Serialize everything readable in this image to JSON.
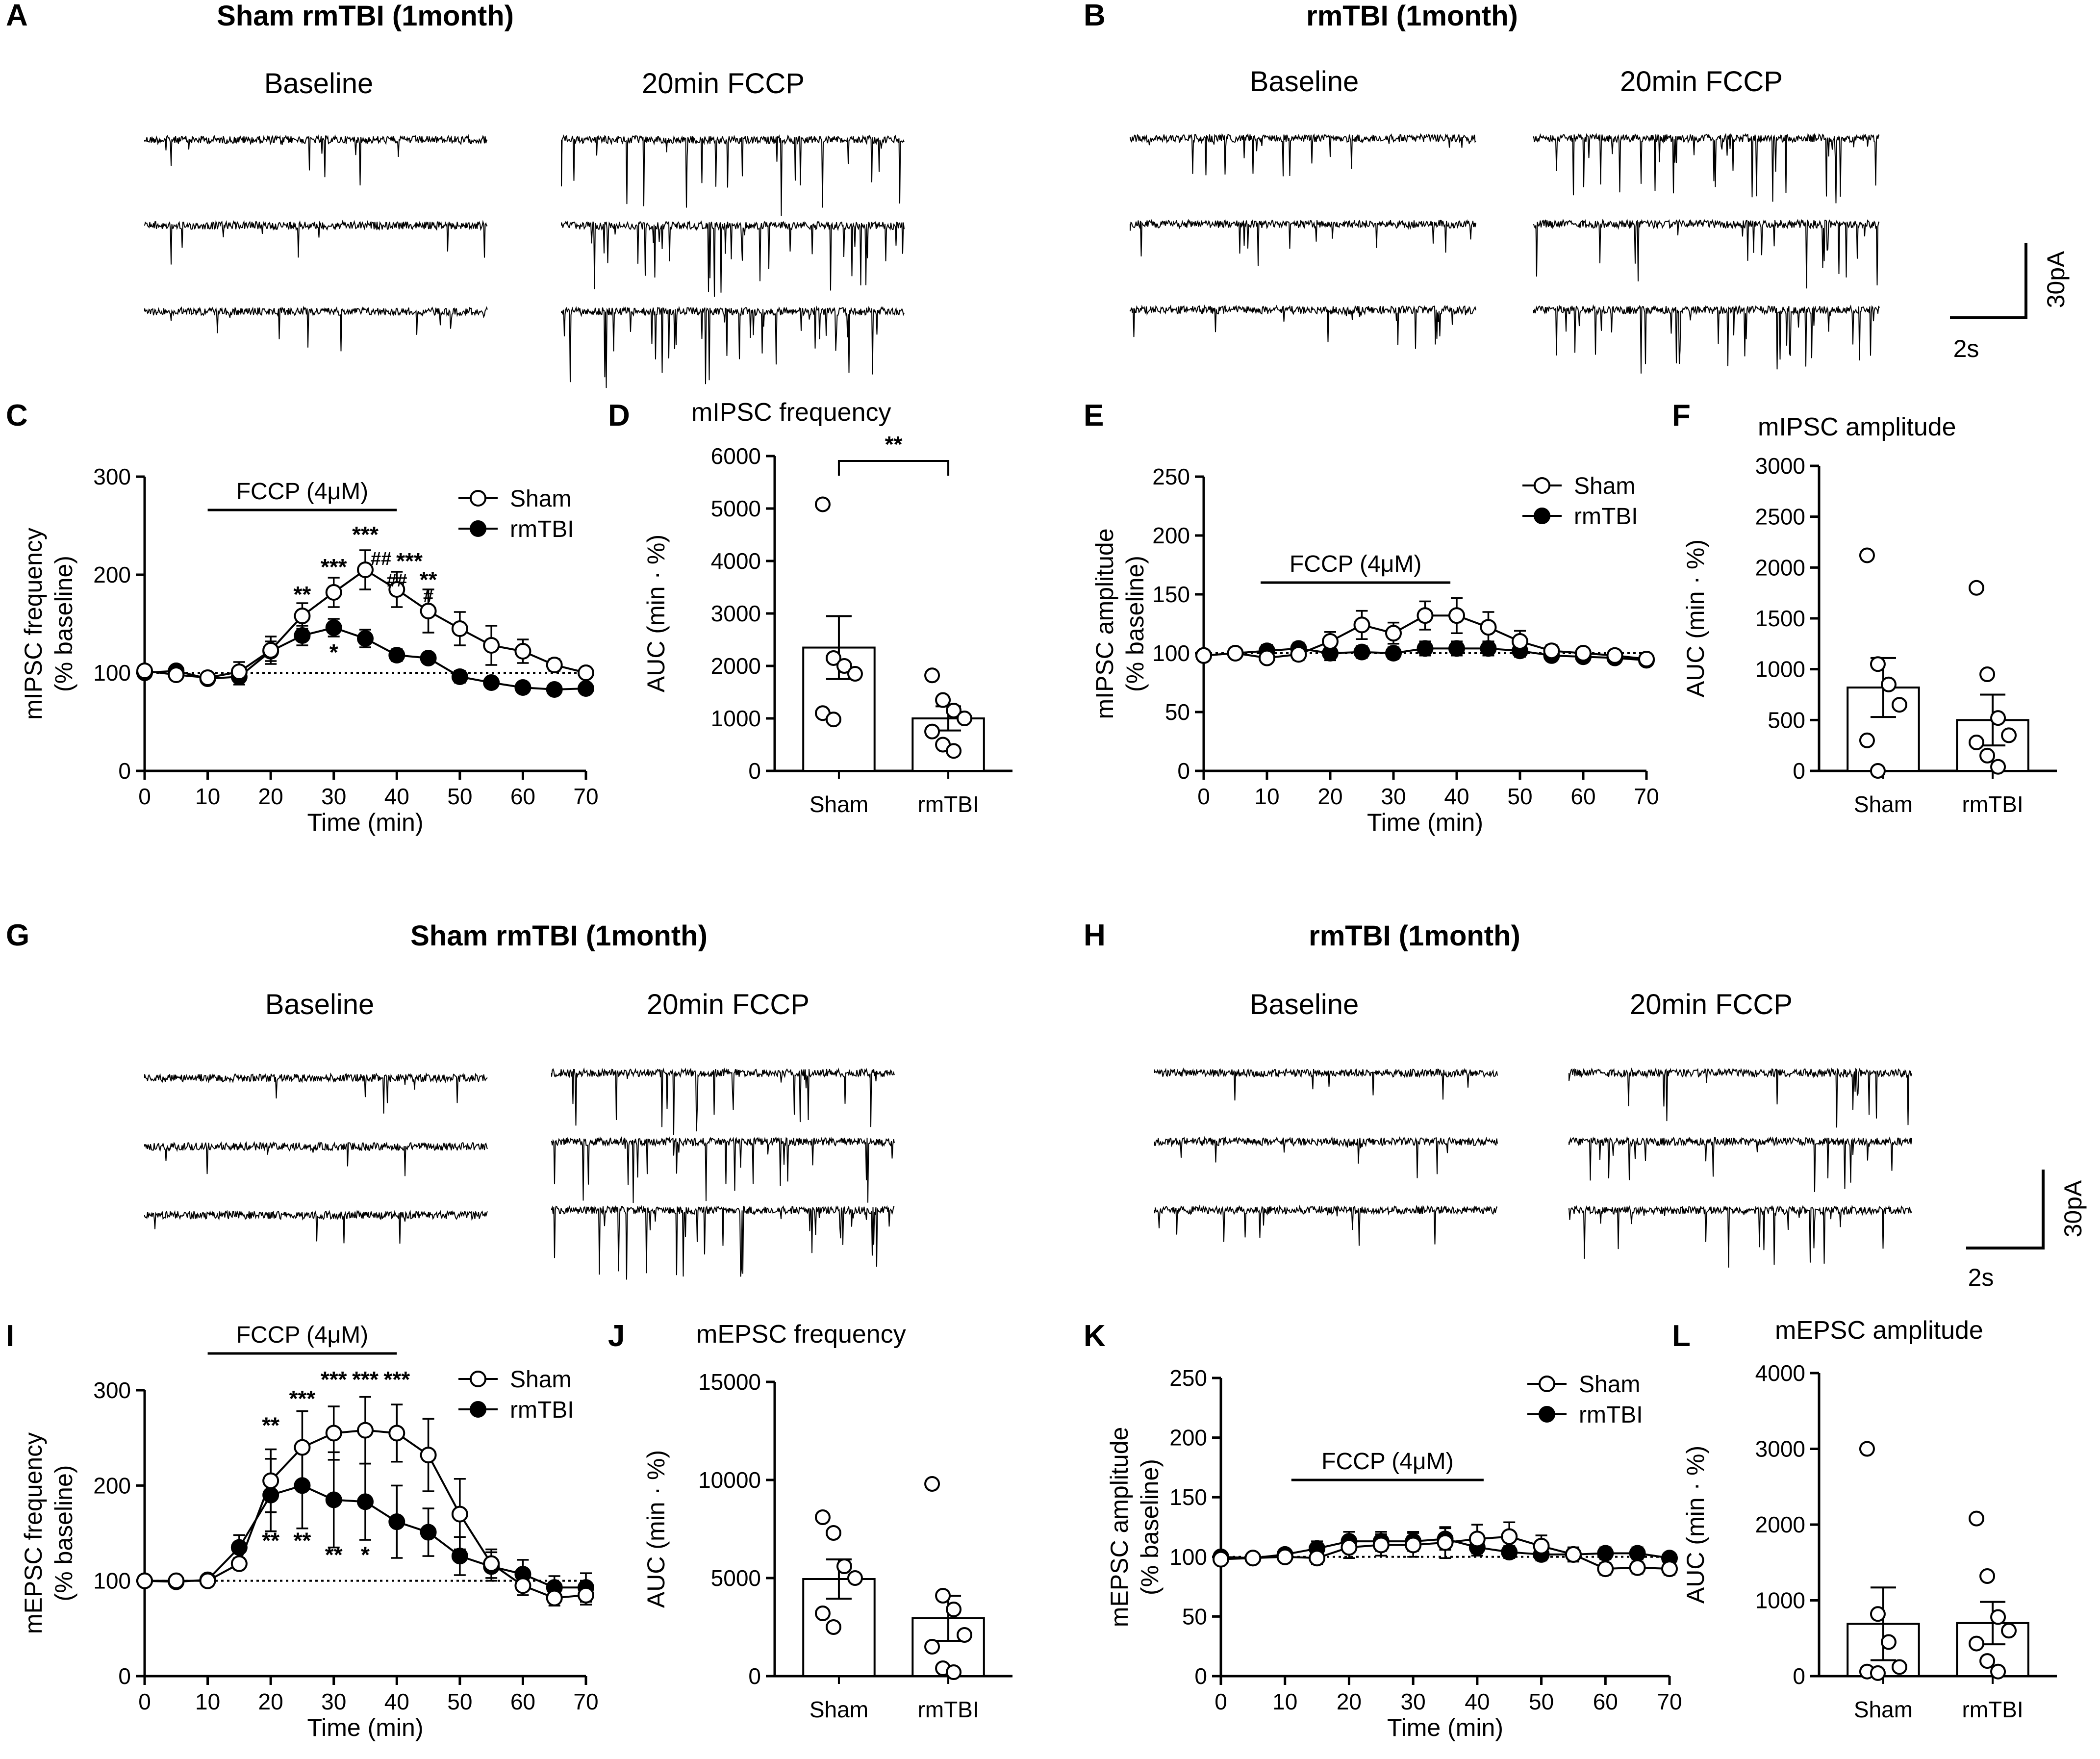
{
  "colors": {
    "ink": "#000000",
    "open_marker": "#ffffff",
    "background": "#ffffff"
  },
  "sections": [
    {
      "panel": "A",
      "title": "Sham rmTBI (1month)",
      "conditions": [
        "Baseline",
        "20min FCCP"
      ]
    },
    {
      "panel": "B",
      "title": "rmTBI (1month)",
      "conditions": [
        "Baseline",
        "20min FCCP"
      ]
    },
    {
      "panel": "G",
      "title": "Sham rmTBI (1month)",
      "conditions": [
        "Baseline",
        "20min FCCP"
      ]
    },
    {
      "panel": "H",
      "title": "rmTBI (1month)",
      "conditions": [
        "Baseline",
        "20min FCCP"
      ]
    }
  ],
  "scale_bars": [
    {
      "y_label": "30pA",
      "x_label": "2s"
    },
    {
      "y_label": "30pA",
      "x_label": "2s"
    }
  ],
  "chart_data": [
    {
      "panel": "C",
      "type": "line",
      "title": "",
      "xlabel": "Time (min)",
      "ylabel": [
        "mIPSC frequency",
        "(% baseline)"
      ],
      "xlim": [
        0,
        70
      ],
      "ylim": [
        0,
        300
      ],
      "xticks": [
        0,
        10,
        20,
        30,
        40,
        50,
        60,
        70
      ],
      "yticks": [
        0,
        100,
        200,
        300
      ],
      "x": [
        0,
        5,
        10,
        15,
        20,
        25,
        30,
        35,
        40,
        45,
        50,
        55,
        60,
        65,
        70
      ],
      "series": [
        {
          "name": "Sham",
          "marker": "open",
          "values": [
            102,
            98,
            95,
            101,
            123,
            158,
            182,
            205,
            185,
            163,
            145,
            128,
            122,
            108,
            100
          ],
          "errors": [
            4,
            3,
            3,
            10,
            14,
            13,
            15,
            20,
            18,
            22,
            17,
            20,
            12,
            6,
            5
          ]
        },
        {
          "name": "rmTBI",
          "marker": "filled",
          "values": [
            100,
            102,
            94,
            96,
            122,
            138,
            146,
            135,
            118,
            115,
            96,
            90,
            85,
            83,
            84
          ],
          "errors": [
            4,
            4,
            5,
            8,
            10,
            10,
            9,
            9,
            6,
            5,
            6,
            5,
            4,
            4,
            4
          ]
        }
      ],
      "baseline": 100,
      "legend": "top-right",
      "treatment_bar": {
        "label": "FCCP (4μM)",
        "from": 10,
        "to": 40
      },
      "annotations": [
        {
          "text": "**",
          "x": 25,
          "y": 172
        },
        {
          "text": "***",
          "x": 30,
          "y": 200
        },
        {
          "text": "***",
          "x": 35,
          "y": 233
        },
        {
          "text": "##",
          "x": 37.5,
          "y": 210
        },
        {
          "text": "##",
          "x": 40,
          "y": 188
        },
        {
          "text": "***",
          "x": 42,
          "y": 206
        },
        {
          "text": "**",
          "x": 45,
          "y": 187
        },
        {
          "text": "#",
          "x": 45,
          "y": 172
        },
        {
          "text": "*",
          "x": 30,
          "y": 113
        }
      ]
    },
    {
      "panel": "D",
      "type": "bar",
      "title": "mIPSC frequency",
      "xlabel": "",
      "ylabel": "AUC (min · %)",
      "ylim": [
        0,
        6000
      ],
      "yticks": [
        0,
        1000,
        2000,
        3000,
        4000,
        5000,
        6000
      ],
      "categories": [
        "Sham",
        "rmTBI"
      ],
      "values": [
        2350,
        1000
      ],
      "errors": [
        600,
        230
      ],
      "points": [
        [
          5080,
          2150,
          2000,
          1850,
          1100,
          980
        ],
        [
          1820,
          1350,
          1150,
          1000,
          750,
          500,
          380
        ]
      ],
      "significance": "**"
    },
    {
      "panel": "E",
      "type": "line",
      "title": "",
      "xlabel": "Time (min)",
      "ylabel": [
        "mIPSC amplitude",
        "(% baseline)"
      ],
      "xlim": [
        0,
        70
      ],
      "ylim": [
        0,
        250
      ],
      "xticks": [
        0,
        10,
        20,
        30,
        40,
        50,
        60,
        70
      ],
      "yticks": [
        0,
        50,
        100,
        150,
        200,
        250
      ],
      "x": [
        0,
        5,
        10,
        15,
        20,
        25,
        30,
        35,
        40,
        45,
        50,
        55,
        60,
        65,
        70
      ],
      "series": [
        {
          "name": "Sham",
          "marker": "open",
          "values": [
            98,
            100,
            96,
            99,
            110,
            124,
            117,
            132,
            132,
            122,
            110,
            102,
            100,
            98,
            95
          ],
          "errors": [
            4,
            3,
            4,
            5,
            8,
            12,
            9,
            12,
            15,
            13,
            9,
            5,
            4,
            4,
            4
          ]
        },
        {
          "name": "rmTBI",
          "marker": "filled",
          "values": [
            98,
            100,
            102,
            104,
            100,
            101,
            100,
            104,
            104,
            104,
            102,
            98,
            97,
            96,
            94
          ],
          "errors": [
            4,
            4,
            5,
            5,
            6,
            5,
            5,
            6,
            6,
            6,
            5,
            4,
            4,
            4,
            4
          ]
        }
      ],
      "baseline": 100,
      "legend": "top-right",
      "treatment_bar": {
        "label": "FCCP (4μM)",
        "from": 9,
        "to": 39
      }
    },
    {
      "panel": "F",
      "type": "bar",
      "title": "mIPSC amplitude",
      "xlabel": "",
      "ylabel": "AUC (min · %)",
      "ylim": [
        0,
        3000
      ],
      "yticks": [
        0,
        500,
        1000,
        1500,
        2000,
        2500,
        3000
      ],
      "categories": [
        "Sham",
        "rmTBI"
      ],
      "values": [
        820,
        500
      ],
      "errors": [
        290,
        250
      ],
      "points": [
        [
          2120,
          1050,
          850,
          650,
          300,
          0
        ],
        [
          1800,
          950,
          520,
          350,
          280,
          150,
          40
        ]
      ]
    },
    {
      "panel": "I",
      "type": "line",
      "title": "",
      "xlabel": "Time (min)",
      "ylabel": [
        "mEPSC frequency",
        "(% baseline)"
      ],
      "xlim": [
        0,
        70
      ],
      "ylim": [
        0,
        300
      ],
      "xticks": [
        0,
        10,
        20,
        30,
        40,
        50,
        60,
        70
      ],
      "yticks": [
        0,
        100,
        200,
        300
      ],
      "x": [
        0,
        5,
        10,
        15,
        20,
        25,
        30,
        35,
        40,
        45,
        50,
        55,
        60,
        65,
        70
      ],
      "series": [
        {
          "name": "Sham",
          "marker": "open",
          "values": [
            100,
            100,
            100,
            118,
            205,
            240,
            255,
            258,
            255,
            232,
            170,
            118,
            95,
            82,
            85
          ],
          "errors": [
            3,
            3,
            3,
            6,
            33,
            38,
            28,
            35,
            30,
            38,
            37,
            15,
            10,
            8,
            10
          ]
        },
        {
          "name": "rmTBI",
          "marker": "filled",
          "values": [
            100,
            99,
            101,
            135,
            190,
            200,
            185,
            183,
            162,
            151,
            126,
            115,
            107,
            93,
            93
          ],
          "errors": [
            3,
            3,
            3,
            13,
            38,
            45,
            50,
            40,
            38,
            25,
            20,
            15,
            15,
            12,
            15
          ]
        }
      ],
      "baseline": 100,
      "legend": "top-right",
      "treatment_bar": {
        "label": "FCCP (4μM)",
        "from": 10,
        "to": 40
      },
      "annotations": [
        {
          "text": "**",
          "x": 20,
          "y": 255
        },
        {
          "text": "***",
          "x": 25,
          "y": 283
        },
        {
          "text": "***",
          "x": 30,
          "y": 303
        },
        {
          "text": "***",
          "x": 35,
          "y": 303
        },
        {
          "text": "***",
          "x": 40,
          "y": 303
        },
        {
          "text": "**",
          "x": 20,
          "y": 134
        },
        {
          "text": "**",
          "x": 25,
          "y": 134
        },
        {
          "text": "**",
          "x": 30,
          "y": 119
        },
        {
          "text": "*",
          "x": 35,
          "y": 119
        }
      ]
    },
    {
      "panel": "J",
      "type": "bar",
      "title": "mEPSC frequency",
      "xlabel": "",
      "ylabel": "AUC (min · %)",
      "ylim": [
        0,
        15000
      ],
      "yticks": [
        0,
        5000,
        10000,
        15000
      ],
      "categories": [
        "Sham",
        "rmTBI"
      ],
      "values": [
        4950,
        2950
      ],
      "errors": [
        1000,
        1150
      ],
      "points": [
        [
          8100,
          7300,
          5600,
          5000,
          3200,
          2500
        ],
        [
          9800,
          4100,
          3400,
          2100,
          1500,
          400,
          200
        ]
      ]
    },
    {
      "panel": "K",
      "type": "line",
      "title": "",
      "xlabel": "Time (min)",
      "ylabel": [
        "mEPSC amplitude",
        "(% baseline)"
      ],
      "xlim": [
        0,
        70
      ],
      "ylim": [
        0,
        250
      ],
      "xticks": [
        0,
        10,
        20,
        30,
        40,
        50,
        60,
        70
      ],
      "yticks": [
        0,
        50,
        100,
        150,
        200,
        250
      ],
      "x": [
        0,
        5,
        10,
        15,
        20,
        25,
        30,
        35,
        40,
        45,
        50,
        55,
        60,
        65,
        70
      ],
      "series": [
        {
          "name": "Sham",
          "marker": "open",
          "values": [
            98,
            99,
            100,
            99,
            108,
            110,
            110,
            112,
            115,
            117,
            109,
            102,
            90,
            91,
            90
          ],
          "errors": [
            4,
            4,
            4,
            5,
            9,
            9,
            10,
            13,
            12,
            12,
            9,
            6,
            5,
            5,
            5
          ]
        },
        {
          "name": "rmTBI",
          "marker": "filled",
          "values": [
            100,
            99,
            102,
            107,
            113,
            113,
            113,
            115,
            108,
            104,
            102,
            102,
            103,
            103,
            99
          ],
          "errors": [
            4,
            4,
            4,
            6,
            8,
            8,
            8,
            9,
            7,
            5,
            5,
            5,
            5,
            5,
            4
          ]
        }
      ],
      "baseline": 100,
      "legend": "top-right",
      "treatment_bar": {
        "label": "FCCP (4μM)",
        "from": 11,
        "to": 41
      }
    },
    {
      "panel": "L",
      "type": "bar",
      "title": "mEPSC amplitude",
      "xlabel": "",
      "ylabel": "AUC (min · %)",
      "ylim": [
        0,
        4000
      ],
      "yticks": [
        0,
        1000,
        2000,
        3000,
        4000
      ],
      "categories": [
        "Sham",
        "rmTBI"
      ],
      "values": [
        690,
        700
      ],
      "errors": [
        480,
        280
      ],
      "points": [
        [
          3000,
          820,
          450,
          120,
          60,
          40
        ],
        [
          2080,
          1320,
          780,
          600,
          430,
          200,
          60
        ]
      ]
    }
  ]
}
